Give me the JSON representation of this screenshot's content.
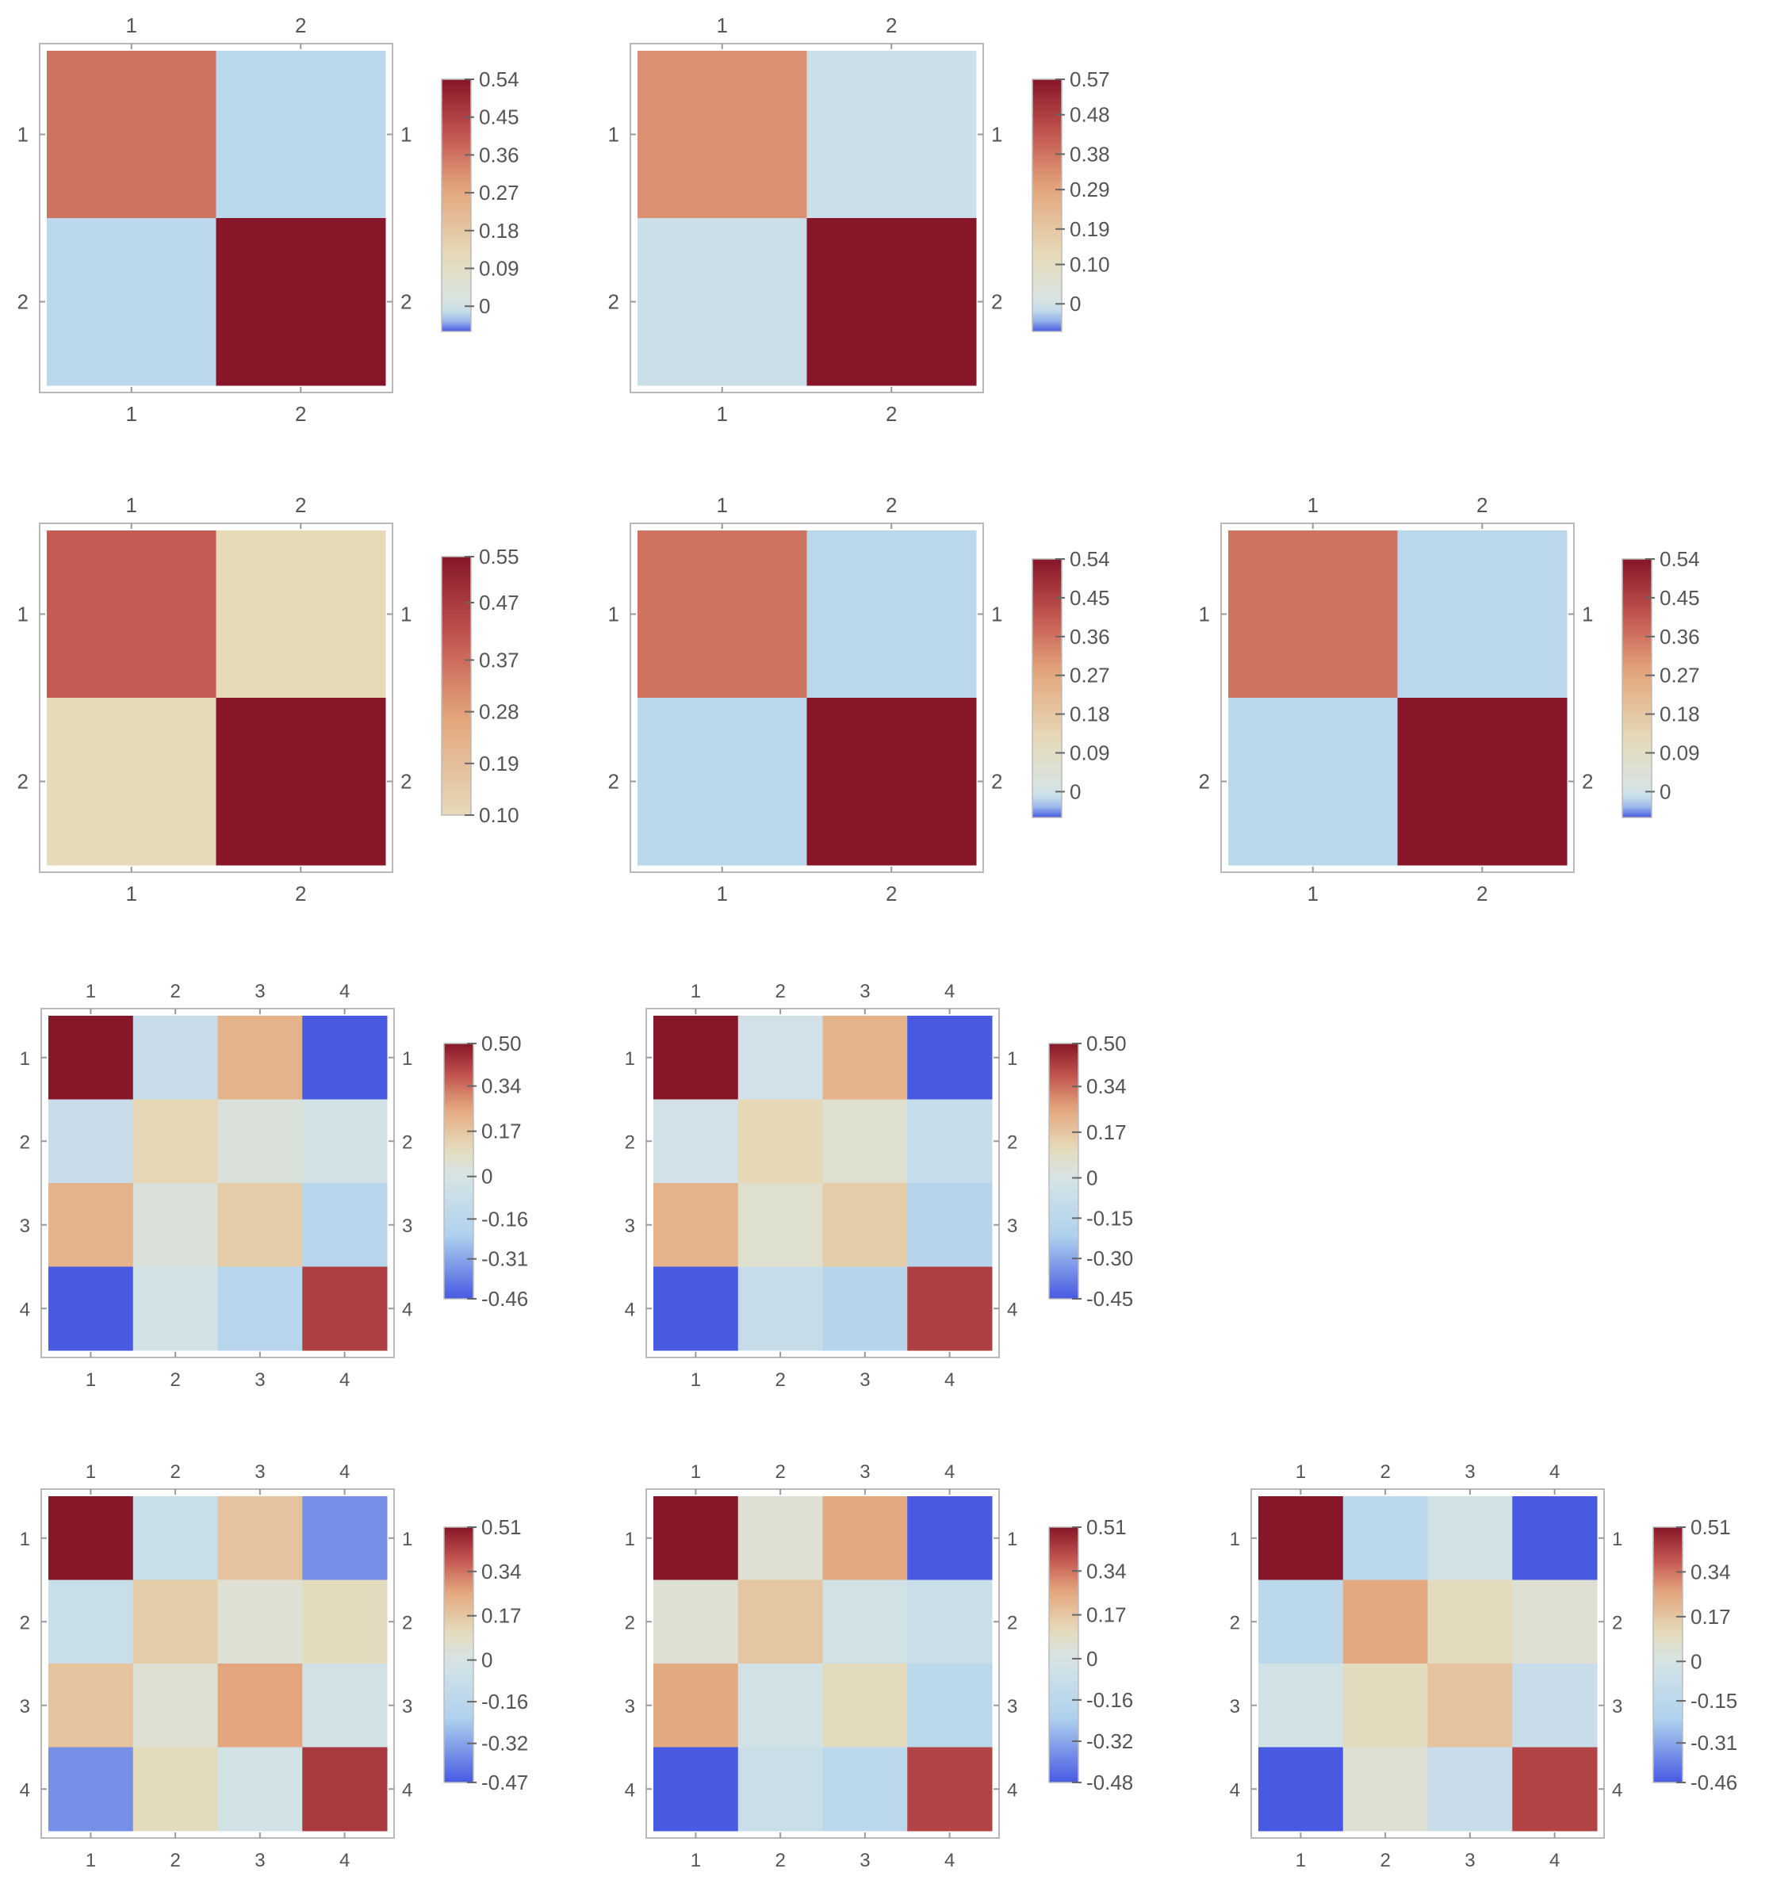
{
  "chart_data": [
    {
      "type": "heatmap",
      "rows": [
        "1",
        "2"
      ],
      "columns": [
        "1",
        "2"
      ],
      "values": [
        [
          0.36,
          -0.02
        ],
        [
          -0.02,
          0.54
        ]
      ],
      "colorbar": {
        "range": [
          -0.06,
          0.54
        ],
        "ticks": [
          "0.54",
          "0.45",
          "0.36",
          "0.27",
          "0.18",
          "0.09",
          "0"
        ]
      }
    },
    {
      "type": "heatmap",
      "rows": [
        "1",
        "2"
      ],
      "columns": [
        "1",
        "2"
      ],
      "values": [
        [
          0.33,
          -0.01
        ],
        [
          -0.01,
          0.57
        ]
      ],
      "colorbar": {
        "range": [
          -0.07,
          0.57
        ],
        "ticks": [
          "0.57",
          "0.48",
          "0.38",
          "0.29",
          "0.19",
          "0.10",
          "0"
        ]
      }
    },
    {
      "type": "heatmap",
      "rows": [
        "1",
        "2"
      ],
      "columns": [
        "1",
        "2"
      ],
      "values": [
        [
          0.4,
          0.1
        ],
        [
          0.1,
          0.55
        ]
      ],
      "colorbar": {
        "range": [
          0.1,
          0.55
        ],
        "ticks": [
          "0.55",
          "0.47",
          "0.37",
          "0.28",
          "0.19",
          "0.10"
        ]
      }
    },
    {
      "type": "heatmap",
      "rows": [
        "1",
        "2"
      ],
      "columns": [
        "1",
        "2"
      ],
      "values": [
        [
          0.36,
          -0.02
        ],
        [
          -0.02,
          0.54
        ]
      ],
      "colorbar": {
        "range": [
          -0.06,
          0.54
        ],
        "ticks": [
          "0.54",
          "0.45",
          "0.36",
          "0.27",
          "0.18",
          "0.09",
          "0"
        ]
      }
    },
    {
      "type": "heatmap",
      "rows": [
        "1",
        "2"
      ],
      "columns": [
        "1",
        "2"
      ],
      "values": [
        [
          0.36,
          -0.02
        ],
        [
          -0.02,
          0.54
        ]
      ],
      "colorbar": {
        "range": [
          -0.06,
          0.54
        ],
        "ticks": [
          "0.54",
          "0.45",
          "0.36",
          "0.27",
          "0.18",
          "0.09",
          "0"
        ]
      }
    },
    {
      "type": "heatmap",
      "rows": [
        "1",
        "2",
        "3",
        "4"
      ],
      "columns": [
        "1",
        "2",
        "3",
        "4"
      ],
      "values": [
        [
          0.5,
          -0.08,
          0.22,
          -0.46
        ],
        [
          -0.08,
          0.12,
          0.03,
          -0.03
        ],
        [
          0.22,
          0.03,
          0.15,
          -0.18
        ],
        [
          -0.46,
          -0.03,
          -0.18,
          0.42
        ]
      ],
      "colorbar": {
        "range": [
          -0.46,
          0.5
        ],
        "ticks": [
          "0.50",
          "0.34",
          "0.17",
          "0",
          "-0.16",
          "-0.31",
          "-0.46"
        ]
      }
    },
    {
      "type": "heatmap",
      "rows": [
        "1",
        "2",
        "3",
        "4"
      ],
      "columns": [
        "1",
        "2",
        "3",
        "4"
      ],
      "values": [
        [
          0.5,
          -0.03,
          0.22,
          -0.45
        ],
        [
          -0.03,
          0.12,
          0.06,
          -0.09
        ],
        [
          0.22,
          0.06,
          0.15,
          -0.18
        ],
        [
          -0.45,
          -0.09,
          -0.18,
          0.42
        ]
      ],
      "colorbar": {
        "range": [
          -0.45,
          0.5
        ],
        "ticks": [
          "0.50",
          "0.34",
          "0.17",
          "0",
          "-0.15",
          "-0.30",
          "-0.45"
        ]
      }
    },
    {
      "type": "heatmap",
      "rows": [
        "1",
        "2",
        "3",
        "4"
      ],
      "columns": [
        "1",
        "2",
        "3",
        "4"
      ],
      "values": [
        [
          0.51,
          -0.08,
          0.18,
          -0.36
        ],
        [
          -0.08,
          0.15,
          0.05,
          0.1
        ],
        [
          0.18,
          0.05,
          0.26,
          -0.03
        ],
        [
          -0.36,
          0.1,
          -0.03,
          0.44
        ]
      ],
      "colorbar": {
        "range": [
          -0.47,
          0.51
        ],
        "ticks": [
          "0.51",
          "0.34",
          "0.17",
          "0",
          "-0.16",
          "-0.32",
          "-0.47"
        ]
      }
    },
    {
      "type": "heatmap",
      "rows": [
        "1",
        "2",
        "3",
        "4"
      ],
      "columns": [
        "1",
        "2",
        "3",
        "4"
      ],
      "values": [
        [
          0.51,
          0.05,
          0.25,
          -0.48
        ],
        [
          0.05,
          0.17,
          -0.03,
          -0.07
        ],
        [
          0.25,
          -0.03,
          0.1,
          -0.16
        ],
        [
          -0.48,
          -0.07,
          -0.16,
          0.42
        ]
      ],
      "colorbar": {
        "range": [
          -0.48,
          0.51
        ],
        "ticks": [
          "0.51",
          "0.34",
          "0.17",
          "0",
          "-0.16",
          "-0.32",
          "-0.48"
        ]
      }
    },
    {
      "type": "heatmap",
      "rows": [
        "1",
        "2",
        "3",
        "4"
      ],
      "columns": [
        "1",
        "2",
        "3",
        "4"
      ],
      "values": [
        [
          0.51,
          -0.15,
          -0.03,
          -0.46
        ],
        [
          -0.15,
          0.25,
          0.1,
          0.05
        ],
        [
          -0.03,
          0.1,
          0.18,
          -0.08
        ],
        [
          -0.46,
          0.05,
          -0.08,
          0.42
        ]
      ],
      "colorbar": {
        "range": [
          -0.46,
          0.51
        ],
        "ticks": [
          "0.51",
          "0.34",
          "0.17",
          "0",
          "-0.15",
          "-0.31",
          "-0.46"
        ]
      }
    }
  ]
}
